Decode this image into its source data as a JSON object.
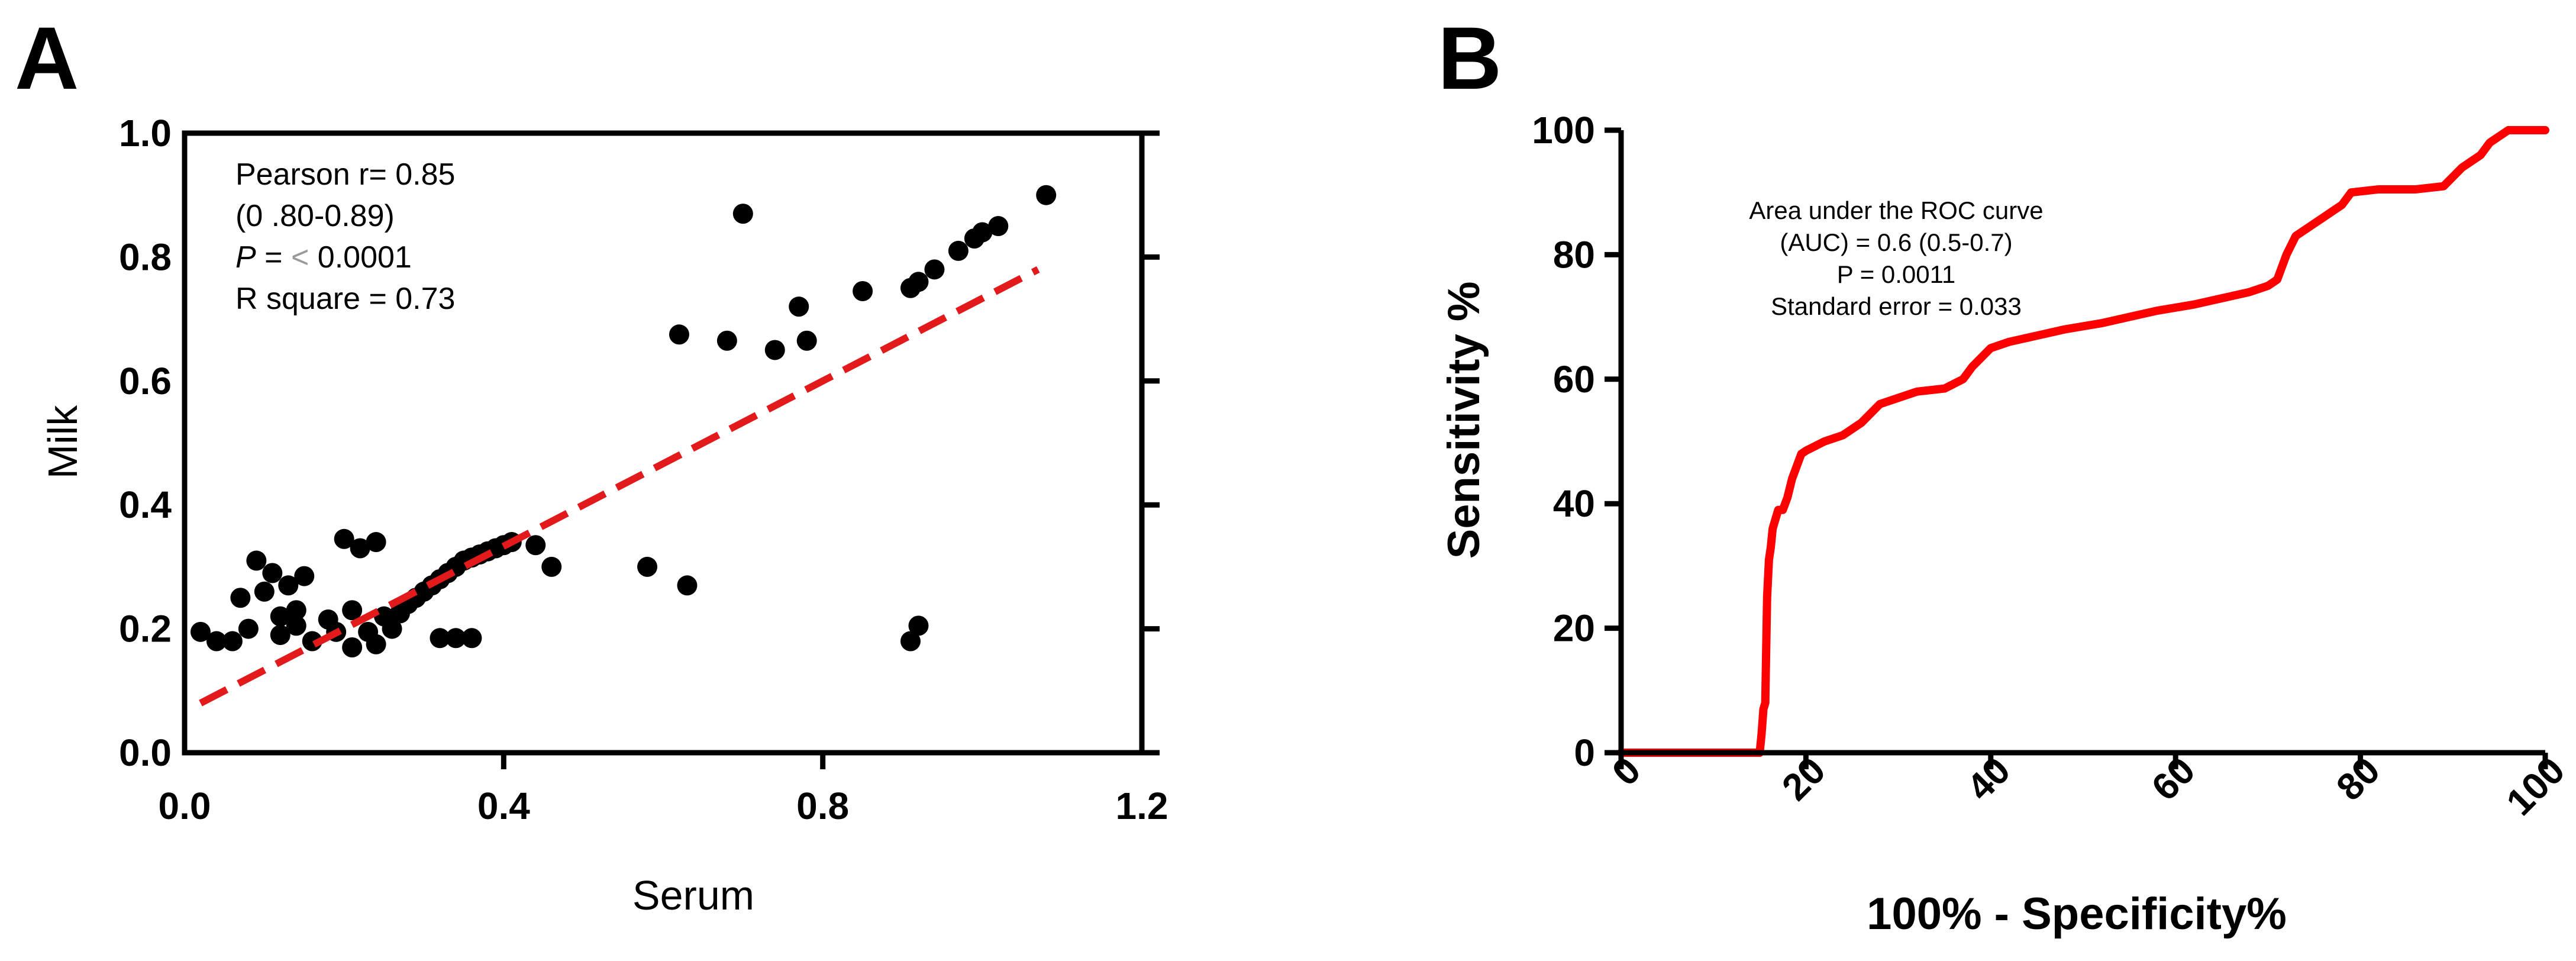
{
  "panels": [
    {
      "letter": "A"
    },
    {
      "letter": "B"
    }
  ],
  "chart_data": [
    {
      "type": "scatter",
      "panel": "A",
      "xlabel": "Serum",
      "ylabel": "Milk",
      "xlim": [
        0.0,
        1.2
      ],
      "ylim": [
        0.0,
        1.0
      ],
      "xticks": [
        "0.0",
        "0.4",
        "0.8",
        "1.2"
      ],
      "yticks": [
        "0.0",
        "0.2",
        "0.4",
        "0.6",
        "0.8",
        "1.0"
      ],
      "annotation": {
        "line1": "Pearson r= 0.85",
        "line2": "(0 .80-0.89)",
        "line3_italic": "P",
        "line3_rest": " = ",
        "line3_symbol": "<",
        "line3_value": " 0.0001",
        "line4": "R square  = 0.73"
      },
      "fit_line": {
        "x": [
          0.02,
          1.07
        ],
        "y": [
          0.08,
          0.78
        ],
        "color": "#e31a1c",
        "style": "dashed"
      },
      "marker_color": "#000000",
      "points": [
        [
          0.02,
          0.195
        ],
        [
          0.04,
          0.18
        ],
        [
          0.06,
          0.18
        ],
        [
          0.07,
          0.25
        ],
        [
          0.08,
          0.2
        ],
        [
          0.09,
          0.31
        ],
        [
          0.1,
          0.26
        ],
        [
          0.11,
          0.29
        ],
        [
          0.12,
          0.22
        ],
        [
          0.12,
          0.19
        ],
        [
          0.13,
          0.27
        ],
        [
          0.14,
          0.23
        ],
        [
          0.14,
          0.205
        ],
        [
          0.15,
          0.285
        ],
        [
          0.16,
          0.18
        ],
        [
          0.18,
          0.215
        ],
        [
          0.19,
          0.195
        ],
        [
          0.2,
          0.345
        ],
        [
          0.21,
          0.17
        ],
        [
          0.21,
          0.23
        ],
        [
          0.22,
          0.33
        ],
        [
          0.23,
          0.195
        ],
        [
          0.24,
          0.175
        ],
        [
          0.24,
          0.34
        ],
        [
          0.25,
          0.22
        ],
        [
          0.26,
          0.2
        ],
        [
          0.27,
          0.225
        ],
        [
          0.28,
          0.24
        ],
        [
          0.29,
          0.25
        ],
        [
          0.3,
          0.26
        ],
        [
          0.31,
          0.27
        ],
        [
          0.32,
          0.28
        ],
        [
          0.33,
          0.29
        ],
        [
          0.34,
          0.3
        ],
        [
          0.35,
          0.31
        ],
        [
          0.36,
          0.315
        ],
        [
          0.37,
          0.32
        ],
        [
          0.38,
          0.325
        ],
        [
          0.39,
          0.33
        ],
        [
          0.4,
          0.335
        ],
        [
          0.41,
          0.34
        ],
        [
          0.32,
          0.185
        ],
        [
          0.34,
          0.185
        ],
        [
          0.36,
          0.185
        ],
        [
          0.44,
          0.335
        ],
        [
          0.46,
          0.3
        ],
        [
          0.58,
          0.3
        ],
        [
          0.63,
          0.27
        ],
        [
          0.62,
          0.675
        ],
        [
          0.68,
          0.665
        ],
        [
          0.7,
          0.87
        ],
        [
          0.74,
          0.65
        ],
        [
          0.77,
          0.72
        ],
        [
          0.78,
          0.665
        ],
        [
          0.85,
          0.745
        ],
        [
          0.91,
          0.75
        ],
        [
          0.92,
          0.76
        ],
        [
          0.94,
          0.78
        ],
        [
          0.97,
          0.81
        ],
        [
          0.99,
          0.83
        ],
        [
          1.0,
          0.84
        ],
        [
          1.02,
          0.85
        ],
        [
          1.08,
          0.9
        ],
        [
          0.91,
          0.18
        ],
        [
          0.92,
          0.205
        ]
      ]
    },
    {
      "type": "line",
      "panel": "B",
      "xlabel": "100%  - Specificity%",
      "ylabel": "Sensitivity %",
      "xlim": [
        0,
        100
      ],
      "ylim": [
        0,
        100
      ],
      "xticks": [
        "0",
        "20",
        "40",
        "60",
        "80",
        "100"
      ],
      "yticks": [
        "0",
        "20",
        "40",
        "60",
        "80",
        "100"
      ],
      "annotation": {
        "line1": "Area under the ROC curve",
        "line2": "(AUC) = 0.6 (0.5-0.7)",
        "line3": "P = 0.0011",
        "line4": "Standard error = 0.033"
      },
      "line_color": "#ff0000",
      "x": [
        0,
        15,
        15.2,
        15.4,
        15.6,
        15.8,
        16,
        16.2,
        16.4,
        16.6,
        16.8,
        17,
        17.5,
        18,
        18.5,
        19,
        19.5,
        20,
        22,
        24,
        26,
        28,
        30,
        32,
        35,
        37,
        38,
        40,
        42,
        45,
        48,
        52,
        55,
        58,
        62,
        65,
        68,
        70,
        71,
        72,
        73,
        74,
        76,
        78,
        79,
        82,
        86,
        89,
        91,
        93,
        94,
        96,
        100
      ],
      "y": [
        0,
        0,
        3,
        7,
        8,
        25,
        31,
        33,
        36,
        37,
        38,
        39,
        39,
        41,
        44,
        46,
        48,
        48.5,
        50,
        51,
        53,
        56,
        57,
        58,
        58.5,
        60,
        62,
        65,
        66,
        67,
        68,
        69,
        70,
        71,
        72,
        73,
        74,
        75,
        76,
        80,
        83,
        84,
        86,
        88,
        90,
        90.5,
        90.5,
        91,
        94,
        96,
        98,
        100,
        100
      ]
    }
  ]
}
